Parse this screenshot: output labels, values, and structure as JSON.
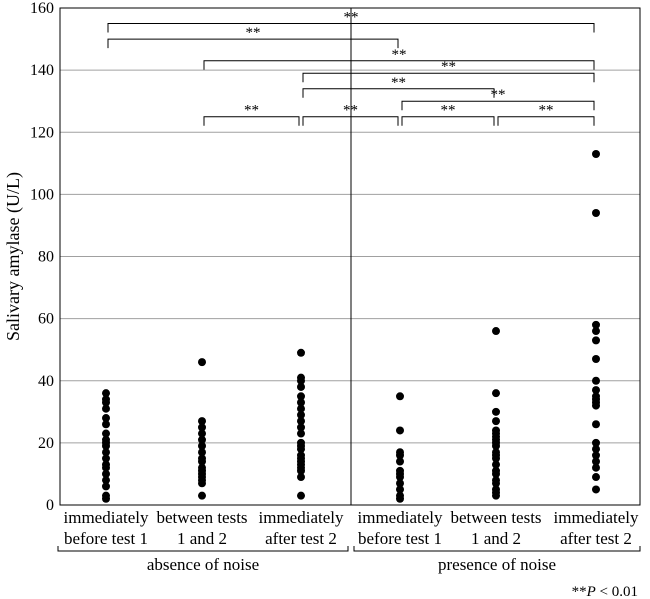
{
  "chart_data": {
    "type": "scatter",
    "ylabel": "Salivary amylase (U/L)",
    "ylim": [
      0,
      160
    ],
    "yticks": [
      0,
      20,
      40,
      60,
      80,
      100,
      120,
      140,
      160
    ],
    "grid": true,
    "categories": [
      {
        "line1": "immediately",
        "line2": "before test 1"
      },
      {
        "line1": "between tests",
        "line2": "1 and 2"
      },
      {
        "line1": "immediately",
        "line2": "after test 2"
      },
      {
        "line1": "immediately",
        "line2": "before test 1"
      },
      {
        "line1": "between tests",
        "line2": "1 and 2"
      },
      {
        "line1": "immediately",
        "line2": "after test 2"
      }
    ],
    "groups": [
      {
        "label": "absence of noise",
        "categories": [
          0,
          1,
          2
        ]
      },
      {
        "label": "presence of noise",
        "categories": [
          3,
          4,
          5
        ]
      }
    ],
    "values": [
      [
        2,
        3,
        6,
        8,
        10,
        12,
        13,
        15,
        17,
        19,
        20,
        21,
        23,
        26,
        28,
        31,
        33,
        34,
        36
      ],
      [
        3,
        7,
        8,
        9,
        10,
        11,
        12,
        14,
        15,
        17,
        19,
        21,
        23,
        25,
        27,
        46
      ],
      [
        3,
        9,
        11,
        12,
        13,
        14,
        15,
        16,
        18,
        19,
        20,
        23,
        25,
        27,
        29,
        31,
        33,
        35,
        38,
        40,
        41,
        49
      ],
      [
        2,
        3,
        5,
        7,
        9,
        10,
        11,
        14,
        16,
        17,
        24,
        35
      ],
      [
        3,
        4,
        5,
        7,
        8,
        10,
        11,
        13,
        15,
        16,
        17,
        19,
        20,
        21,
        22,
        23,
        24,
        27,
        30,
        36,
        56
      ],
      [
        5,
        9,
        12,
        14,
        16,
        18,
        20,
        26,
        32,
        33,
        34,
        35,
        37,
        40,
        47,
        53,
        56,
        58,
        94,
        113
      ]
    ],
    "significance": [
      {
        "from": 0,
        "to": 5,
        "label": "**",
        "y": 155
      },
      {
        "from": 0,
        "to": 3,
        "label": "**",
        "y": 150
      },
      {
        "from": 1,
        "to": 5,
        "label": "**",
        "y": 143
      },
      {
        "from": 2,
        "to": 5,
        "label": "**",
        "y": 139
      },
      {
        "from": 2,
        "to": 4,
        "label": "**",
        "y": 134
      },
      {
        "from": 3,
        "to": 5,
        "label": "**",
        "y": 130
      },
      {
        "from": 1,
        "to": 2,
        "label": "**",
        "y": 125
      },
      {
        "from": 2,
        "to": 3,
        "label": "**",
        "y": 125
      },
      {
        "from": 3,
        "to": 4,
        "label": "**",
        "y": 125
      },
      {
        "from": 4,
        "to": 5,
        "label": "**",
        "y": 125
      }
    ],
    "p_note_prefix": "**",
    "p_note_p": "P",
    "p_note_suffix": " < 0.01"
  }
}
